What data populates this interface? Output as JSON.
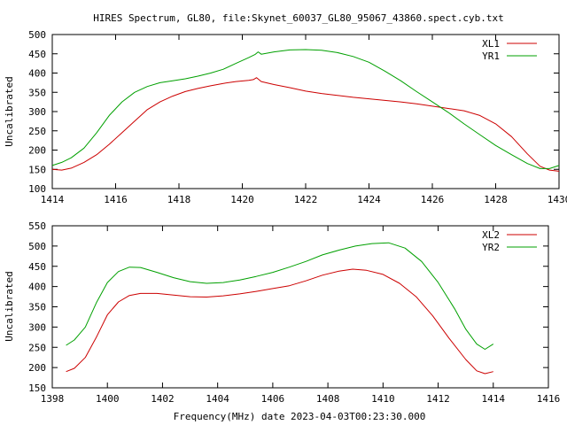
{
  "title": "HIRES Spectrum, GL80, file:Skynet_60037_GL80_95067_43860.spect.cyb.txt",
  "xlabel": "Frequency(MHz) date 2023-04-03T00:23:30.000",
  "colors": {
    "red": "#cc0000",
    "green": "#00a000"
  },
  "chart_data": [
    {
      "type": "line",
      "ylabel": "Uncalibrated",
      "xlim": [
        1414,
        1430
      ],
      "ylim": [
        100,
        500
      ],
      "x_ticks": [
        1414,
        1416,
        1418,
        1420,
        1422,
        1424,
        1426,
        1428,
        1430
      ],
      "y_ticks": [
        100,
        150,
        200,
        250,
        300,
        350,
        400,
        450,
        500
      ],
      "legend_position": "top-right",
      "grid": false,
      "series": [
        {
          "name": "XL1",
          "color": "#cc0000",
          "points": [
            [
              1414.0,
              150
            ],
            [
              1414.3,
              148
            ],
            [
              1414.6,
              153
            ],
            [
              1415.0,
              168
            ],
            [
              1415.4,
              188
            ],
            [
              1415.8,
              215
            ],
            [
              1416.2,
              245
            ],
            [
              1416.6,
              275
            ],
            [
              1417.0,
              305
            ],
            [
              1417.4,
              325
            ],
            [
              1417.8,
              340
            ],
            [
              1418.2,
              352
            ],
            [
              1418.6,
              360
            ],
            [
              1419.0,
              367
            ],
            [
              1419.4,
              373
            ],
            [
              1419.8,
              378
            ],
            [
              1420.2,
              381
            ],
            [
              1420.35,
              383
            ],
            [
              1420.45,
              388
            ],
            [
              1420.6,
              378
            ],
            [
              1421.0,
              370
            ],
            [
              1421.5,
              362
            ],
            [
              1422.0,
              353
            ],
            [
              1422.5,
              347
            ],
            [
              1423.0,
              342
            ],
            [
              1423.5,
              337
            ],
            [
              1424.0,
              333
            ],
            [
              1424.5,
              329
            ],
            [
              1425.0,
              325
            ],
            [
              1425.5,
              320
            ],
            [
              1426.0,
              314
            ],
            [
              1426.5,
              308
            ],
            [
              1427.0,
              302
            ],
            [
              1427.5,
              290
            ],
            [
              1428.0,
              268
            ],
            [
              1428.5,
              235
            ],
            [
              1429.0,
              190
            ],
            [
              1429.4,
              158
            ],
            [
              1429.7,
              148
            ],
            [
              1430.0,
              145
            ]
          ]
        },
        {
          "name": "YR1",
          "color": "#00a000",
          "points": [
            [
              1414.0,
              160
            ],
            [
              1414.3,
              168
            ],
            [
              1414.6,
              180
            ],
            [
              1415.0,
              205
            ],
            [
              1415.4,
              245
            ],
            [
              1415.8,
              290
            ],
            [
              1416.2,
              325
            ],
            [
              1416.6,
              350
            ],
            [
              1417.0,
              365
            ],
            [
              1417.4,
              375
            ],
            [
              1417.8,
              380
            ],
            [
              1418.2,
              385
            ],
            [
              1418.6,
              392
            ],
            [
              1419.0,
              400
            ],
            [
              1419.4,
              410
            ],
            [
              1419.8,
              425
            ],
            [
              1420.2,
              440
            ],
            [
              1420.4,
              448
            ],
            [
              1420.5,
              455
            ],
            [
              1420.6,
              449
            ],
            [
              1421.0,
              455
            ],
            [
              1421.5,
              460
            ],
            [
              1422.0,
              461
            ],
            [
              1422.5,
              459
            ],
            [
              1423.0,
              453
            ],
            [
              1423.5,
              443
            ],
            [
              1424.0,
              428
            ],
            [
              1424.5,
              405
            ],
            [
              1425.0,
              380
            ],
            [
              1425.5,
              352
            ],
            [
              1426.0,
              325
            ],
            [
              1426.5,
              298
            ],
            [
              1427.0,
              268
            ],
            [
              1427.5,
              240
            ],
            [
              1428.0,
              212
            ],
            [
              1428.5,
              188
            ],
            [
              1429.0,
              165
            ],
            [
              1429.4,
              152
            ],
            [
              1429.7,
              152
            ],
            [
              1430.0,
              160
            ]
          ]
        }
      ]
    },
    {
      "type": "line",
      "ylabel": "Uncalibrated",
      "xlim": [
        1398,
        1416
      ],
      "ylim": [
        150,
        550
      ],
      "x_ticks": [
        1398,
        1400,
        1402,
        1404,
        1406,
        1408,
        1410,
        1412,
        1414,
        1416
      ],
      "y_ticks": [
        150,
        200,
        250,
        300,
        350,
        400,
        450,
        500,
        550
      ],
      "legend_position": "top-right",
      "grid": false,
      "series": [
        {
          "name": "XL2",
          "color": "#cc0000",
          "points": [
            [
              1398.5,
              190
            ],
            [
              1398.8,
              198
            ],
            [
              1399.2,
              225
            ],
            [
              1399.6,
              275
            ],
            [
              1400.0,
              330
            ],
            [
              1400.4,
              362
            ],
            [
              1400.8,
              378
            ],
            [
              1401.2,
              383
            ],
            [
              1401.8,
              383
            ],
            [
              1402.4,
              379
            ],
            [
              1403.0,
              375
            ],
            [
              1403.6,
              374
            ],
            [
              1404.2,
              377
            ],
            [
              1404.8,
              382
            ],
            [
              1405.4,
              388
            ],
            [
              1406.0,
              395
            ],
            [
              1406.6,
              402
            ],
            [
              1407.2,
              414
            ],
            [
              1407.8,
              428
            ],
            [
              1408.4,
              438
            ],
            [
              1408.9,
              443
            ],
            [
              1409.4,
              440
            ],
            [
              1410.0,
              430
            ],
            [
              1410.6,
              408
            ],
            [
              1411.2,
              375
            ],
            [
              1411.8,
              328
            ],
            [
              1412.4,
              272
            ],
            [
              1413.0,
              220
            ],
            [
              1413.4,
              192
            ],
            [
              1413.7,
              185
            ],
            [
              1414.0,
              190
            ]
          ]
        },
        {
          "name": "YR2",
          "color": "#00a000",
          "points": [
            [
              1398.5,
              255
            ],
            [
              1398.8,
              268
            ],
            [
              1399.2,
              300
            ],
            [
              1399.6,
              360
            ],
            [
              1400.0,
              410
            ],
            [
              1400.4,
              437
            ],
            [
              1400.8,
              448
            ],
            [
              1401.2,
              447
            ],
            [
              1401.8,
              435
            ],
            [
              1402.4,
              422
            ],
            [
              1403.0,
              412
            ],
            [
              1403.6,
              408
            ],
            [
              1404.2,
              410
            ],
            [
              1404.8,
              416
            ],
            [
              1405.4,
              425
            ],
            [
              1406.0,
              435
            ],
            [
              1406.6,
              448
            ],
            [
              1407.2,
              462
            ],
            [
              1407.8,
              478
            ],
            [
              1408.4,
              490
            ],
            [
              1409.0,
              500
            ],
            [
              1409.6,
              506
            ],
            [
              1410.2,
              508
            ],
            [
              1410.8,
              495
            ],
            [
              1411.4,
              462
            ],
            [
              1412.0,
              410
            ],
            [
              1412.6,
              345
            ],
            [
              1413.0,
              295
            ],
            [
              1413.4,
              258
            ],
            [
              1413.7,
              245
            ],
            [
              1414.0,
              258
            ]
          ]
        }
      ]
    }
  ]
}
